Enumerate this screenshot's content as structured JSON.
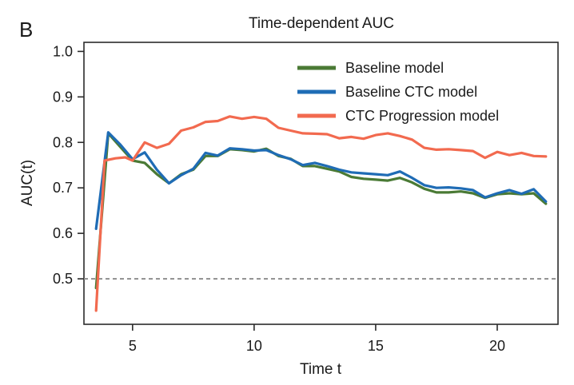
{
  "panel_label": "B",
  "chart_data": {
    "type": "line",
    "title": "Time-dependent AUC",
    "xlabel": "Time t",
    "ylabel": "AUC(t)",
    "xlim": [
      3.0,
      22.5
    ],
    "ylim": [
      0.4,
      1.02
    ],
    "x_ticks": [
      5,
      10,
      15,
      20
    ],
    "y_ticks": [
      "0.5",
      "0.6",
      "0.7",
      "0.8",
      "0.9",
      "1.0"
    ],
    "legend_position": "top-right",
    "grid": false,
    "reference_line": {
      "y": 0.5,
      "style": "dashed",
      "color": "#8c8c8c"
    },
    "series": [
      {
        "name": "Baseline model",
        "color": "#4a7a35",
        "points": [
          [
            3.5,
            0.48
          ],
          [
            4.0,
            0.82
          ],
          [
            4.5,
            0.79
          ],
          [
            5.0,
            0.76
          ],
          [
            5.5,
            0.755
          ],
          [
            6.0,
            0.73
          ],
          [
            6.5,
            0.71
          ],
          [
            7.0,
            0.73
          ],
          [
            7.5,
            0.74
          ],
          [
            8.0,
            0.77
          ],
          [
            8.5,
            0.77
          ],
          [
            9.0,
            0.785
          ],
          [
            9.5,
            0.783
          ],
          [
            10.0,
            0.78
          ],
          [
            10.5,
            0.786
          ],
          [
            11.0,
            0.77
          ],
          [
            11.5,
            0.764
          ],
          [
            12.0,
            0.748
          ],
          [
            12.5,
            0.748
          ],
          [
            13.0,
            0.742
          ],
          [
            13.5,
            0.736
          ],
          [
            14.0,
            0.724
          ],
          [
            14.5,
            0.72
          ],
          [
            15.0,
            0.718
          ],
          [
            15.5,
            0.716
          ],
          [
            16.0,
            0.722
          ],
          [
            16.5,
            0.712
          ],
          [
            17.0,
            0.698
          ],
          [
            17.5,
            0.69
          ],
          [
            18.0,
            0.69
          ],
          [
            18.5,
            0.692
          ],
          [
            19.0,
            0.688
          ],
          [
            19.5,
            0.678
          ],
          [
            20.0,
            0.686
          ],
          [
            20.5,
            0.688
          ],
          [
            21.0,
            0.686
          ],
          [
            21.5,
            0.688
          ],
          [
            22.0,
            0.665
          ]
        ]
      },
      {
        "name": "Baseline CTC model",
        "color": "#1f6cb5",
        "points": [
          [
            3.5,
            0.61
          ],
          [
            4.0,
            0.822
          ],
          [
            4.5,
            0.795
          ],
          [
            5.0,
            0.763
          ],
          [
            5.5,
            0.778
          ],
          [
            6.0,
            0.74
          ],
          [
            6.5,
            0.71
          ],
          [
            7.0,
            0.728
          ],
          [
            7.5,
            0.742
          ],
          [
            8.0,
            0.777
          ],
          [
            8.5,
            0.771
          ],
          [
            9.0,
            0.787
          ],
          [
            9.5,
            0.785
          ],
          [
            10.0,
            0.782
          ],
          [
            10.5,
            0.783
          ],
          [
            11.0,
            0.772
          ],
          [
            11.5,
            0.763
          ],
          [
            12.0,
            0.75
          ],
          [
            12.5,
            0.755
          ],
          [
            13.0,
            0.748
          ],
          [
            13.5,
            0.74
          ],
          [
            14.0,
            0.734
          ],
          [
            14.5,
            0.732
          ],
          [
            15.0,
            0.73
          ],
          [
            15.5,
            0.728
          ],
          [
            16.0,
            0.736
          ],
          [
            16.5,
            0.722
          ],
          [
            17.0,
            0.706
          ],
          [
            17.5,
            0.7
          ],
          [
            18.0,
            0.701
          ],
          [
            18.5,
            0.699
          ],
          [
            19.0,
            0.695
          ],
          [
            19.5,
            0.679
          ],
          [
            20.0,
            0.688
          ],
          [
            20.5,
            0.695
          ],
          [
            21.0,
            0.687
          ],
          [
            21.5,
            0.697
          ],
          [
            22.0,
            0.67
          ]
        ]
      },
      {
        "name": "CTC Progression model",
        "color": "#f26a4f",
        "points": [
          [
            3.5,
            0.43
          ],
          [
            3.85,
            0.76
          ],
          [
            4.3,
            0.765
          ],
          [
            4.7,
            0.767
          ],
          [
            5.0,
            0.76
          ],
          [
            5.5,
            0.8
          ],
          [
            6.0,
            0.788
          ],
          [
            6.5,
            0.797
          ],
          [
            7.0,
            0.826
          ],
          [
            7.5,
            0.833
          ],
          [
            8.0,
            0.845
          ],
          [
            8.5,
            0.847
          ],
          [
            9.0,
            0.857
          ],
          [
            9.5,
            0.852
          ],
          [
            10.0,
            0.856
          ],
          [
            10.5,
            0.852
          ],
          [
            11.0,
            0.832
          ],
          [
            11.5,
            0.826
          ],
          [
            12.0,
            0.82
          ],
          [
            12.5,
            0.819
          ],
          [
            13.0,
            0.818
          ],
          [
            13.5,
            0.809
          ],
          [
            14.0,
            0.812
          ],
          [
            14.5,
            0.808
          ],
          [
            15.0,
            0.816
          ],
          [
            15.5,
            0.82
          ],
          [
            16.0,
            0.814
          ],
          [
            16.5,
            0.806
          ],
          [
            17.0,
            0.788
          ],
          [
            17.5,
            0.784
          ],
          [
            18.0,
            0.785
          ],
          [
            18.5,
            0.783
          ],
          [
            19.0,
            0.781
          ],
          [
            19.5,
            0.766
          ],
          [
            20.0,
            0.779
          ],
          [
            20.5,
            0.772
          ],
          [
            21.0,
            0.777
          ],
          [
            21.5,
            0.77
          ],
          [
            22.0,
            0.769
          ]
        ]
      }
    ]
  }
}
